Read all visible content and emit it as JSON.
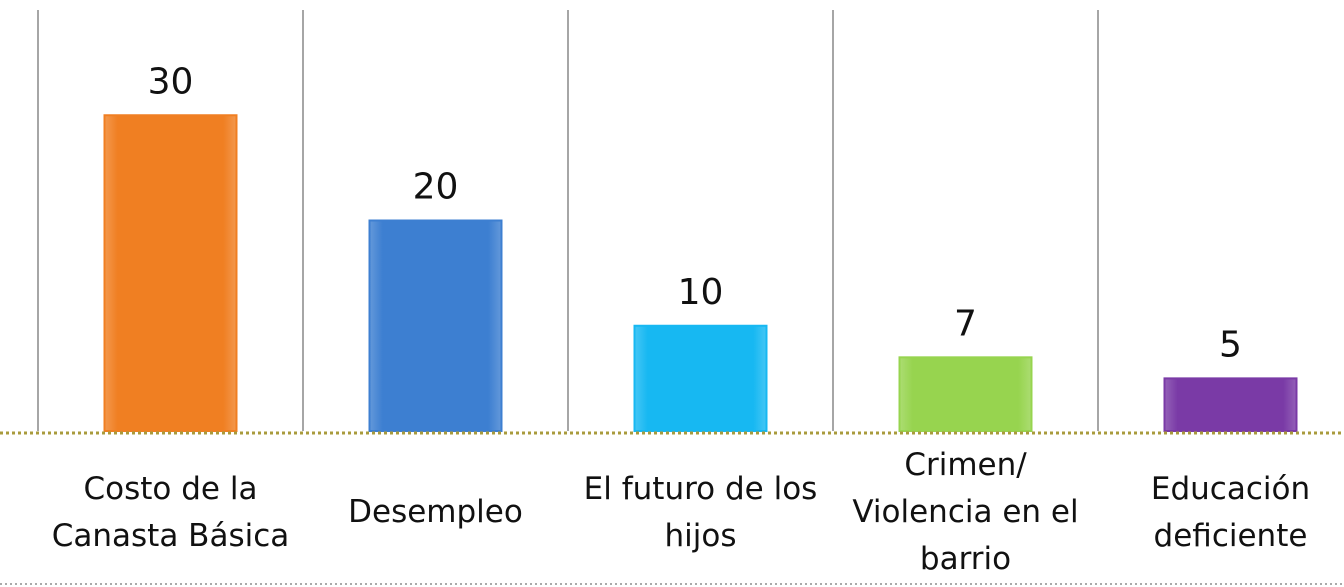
{
  "chart_data": {
    "type": "bar",
    "categories": [
      "Costo de la Canasta Básica",
      "Desempleo",
      "El futuro de los hijos",
      "Crimen/ Violencia en el barrio",
      "Educación deficiente"
    ],
    "values": [
      30,
      20,
      10,
      7,
      5
    ],
    "colors": [
      "#f07f22",
      "#3d7fd1",
      "#17b8f2",
      "#97d44f",
      "#7a3aa6"
    ],
    "ylim": [
      0,
      40
    ]
  }
}
